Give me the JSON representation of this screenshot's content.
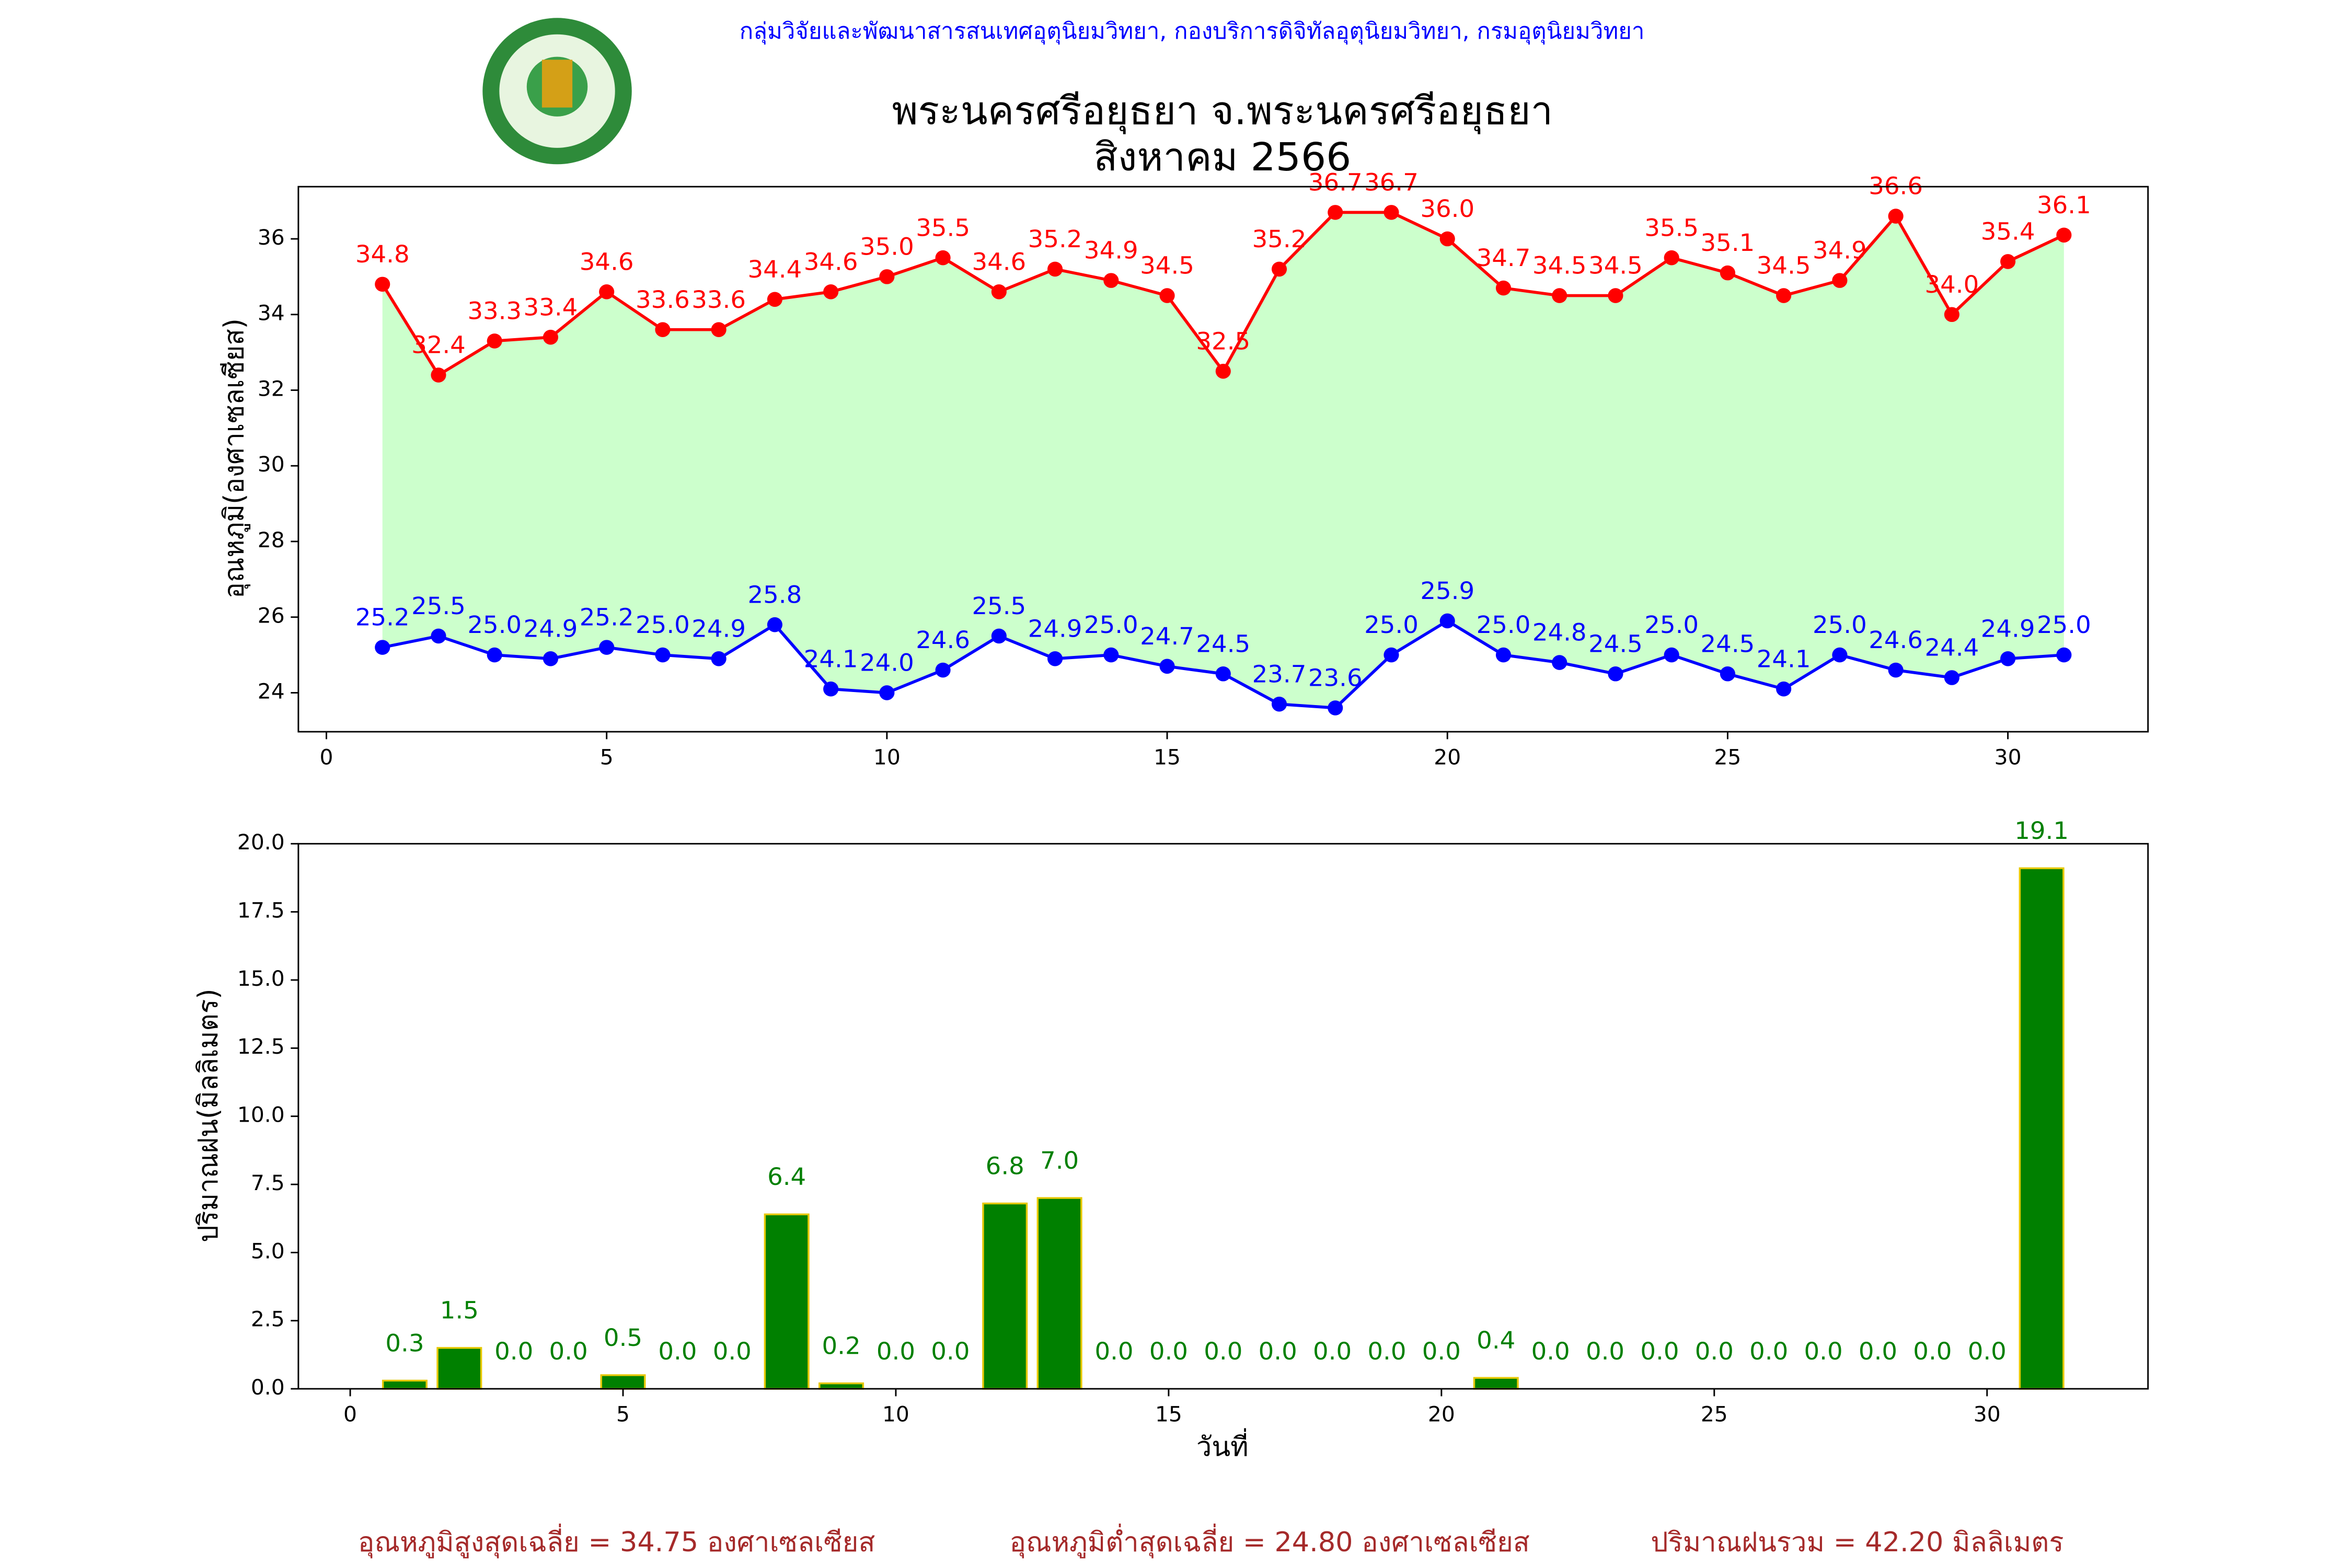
{
  "header": "กลุ่มวิจัยและพัฒนาสารสนเทศอุตุนิยมวิทยา, กองบริการดิจิทัลอุตุนิยมวิทยา, กรมอุตุนิยมวิทยา",
  "footer": [
    "อุณหภูมิสูงสุดเฉลี่ย = 34.75 องศาเซลเซียส",
    "อุณหภูมิต่ำสุดเฉลี่ย = 24.80 องศาเซลเซียส",
    "ปริมาณฝนรวม = 42.20 มิลลิเมตร"
  ],
  "chart_data": [
    {
      "type": "line",
      "title": "พระนครศรีอยุธยา จ.พระนครศรีอยุธยา",
      "subtitle": "สิงหาคม 2566",
      "y_label": "อุณหภูมิ(องศาเซลเซียส)",
      "fill_between": "#ccffcc",
      "x": [
        1,
        2,
        3,
        4,
        5,
        6,
        7,
        8,
        9,
        10,
        11,
        12,
        13,
        14,
        15,
        16,
        17,
        18,
        19,
        20,
        21,
        22,
        23,
        24,
        25,
        26,
        27,
        28,
        29,
        30,
        31
      ],
      "series": [
        {
          "color": "#ff0000",
          "values": [
            34.8,
            32.4,
            33.3,
            33.4,
            34.6,
            33.6,
            33.6,
            34.4,
            34.6,
            35.0,
            35.5,
            34.6,
            35.2,
            34.9,
            34.5,
            32.5,
            35.2,
            36.7,
            36.7,
            36.0,
            34.7,
            34.5,
            34.5,
            35.5,
            35.1,
            34.5,
            34.9,
            36.6,
            34.0,
            35.4,
            36.1
          ],
          "value_labels": [
            "34.8",
            "32.4",
            "33.3",
            "33.4",
            "34.6",
            "33.6",
            "33.6",
            "34.4",
            "34.6",
            "35.0",
            "35.5",
            "34.6",
            "35.2",
            "34.9",
            "34.5",
            "32.5",
            "35.2",
            "36.7",
            "36.7",
            "36.0",
            "34.7",
            "34.5",
            "34.5",
            "35.5",
            "35.1",
            "34.5",
            "34.9",
            "36.6",
            "34.0",
            "35.4",
            "36.1"
          ]
        },
        {
          "color": "#0000ff",
          "values": [
            25.2,
            25.5,
            25.0,
            24.9,
            25.2,
            25.0,
            24.9,
            25.8,
            24.1,
            24.0,
            24.6,
            25.5,
            24.9,
            25.0,
            24.7,
            24.5,
            23.7,
            23.6,
            25.0,
            25.9,
            25.0,
            24.8,
            24.5,
            25.0,
            24.5,
            24.1,
            25.0,
            24.6,
            24.4,
            24.9,
            25.0
          ],
          "value_labels": [
            "25.2",
            "25.5",
            "25.0",
            "24.9",
            "25.2",
            "25.0",
            "24.9",
            "25.8",
            "24.1",
            "24.0",
            "24.6",
            "25.5",
            "24.9",
            "25.0",
            "24.7",
            "24.5",
            "23.7",
            "23.6",
            "25.0",
            "25.9",
            "25.0",
            "24.8",
            "24.5",
            "25.0",
            "24.5",
            "24.1",
            "25.0",
            "24.6",
            "24.4",
            "24.9",
            "25.0"
          ]
        }
      ],
      "xlim": [
        -0.5,
        32.5
      ],
      "xticks": [
        0,
        5,
        10,
        15,
        20,
        25,
        30
      ],
      "ylim": [
        22.97,
        37.38
      ],
      "yticks": [
        24,
        26,
        28,
        30,
        32,
        34,
        36
      ]
    },
    {
      "type": "bar",
      "x_label": "วันที่",
      "y_label": "ปริมาณฝน(มิลลิเมตร)",
      "color": "#008000",
      "edgecolor": "#e6c800",
      "x": [
        1,
        2,
        3,
        4,
        5,
        6,
        7,
        8,
        9,
        10,
        11,
        12,
        13,
        14,
        15,
        16,
        17,
        18,
        19,
        20,
        21,
        22,
        23,
        24,
        25,
        26,
        27,
        28,
        29,
        30,
        31
      ],
      "values": [
        0.3,
        1.5,
        0,
        0,
        0.5,
        0,
        0,
        6.4,
        0.2,
        0,
        0,
        6.8,
        7.0,
        0,
        0,
        0,
        0,
        0,
        0,
        0,
        0.4,
        0,
        0,
        0,
        0,
        0,
        0,
        0,
        0,
        0,
        19.1
      ],
      "value_labels": [
        "0.3",
        "1.5",
        "0.0",
        "0.0",
        "0.5",
        "0.0",
        "0.0",
        "6.4",
        "0.2",
        "0.0",
        "0.0",
        "6.8",
        "7.0",
        "0.0",
        "0.0",
        "0.0",
        "0.0",
        "0.0",
        "0.0",
        "0.0",
        "0.4",
        "0.0",
        "0.0",
        "0.0",
        "0.0",
        "0.0",
        "0.0",
        "0.0",
        "0.0",
        "0.0",
        "19.1"
      ],
      "xlim": [
        -0.95,
        32.95
      ],
      "xticks": [
        0,
        5,
        10,
        15,
        20,
        25,
        30
      ],
      "ylim": [
        0,
        20
      ],
      "yticks": [
        {
          "value": 0,
          "label": "0.0"
        },
        {
          "value": 2.5,
          "label": "2.5"
        },
        {
          "value": 5,
          "label": "5.0"
        },
        {
          "value": 7.5,
          "label": "7.5"
        },
        {
          "value": 10,
          "label": "10.0"
        },
        {
          "value": 12.5,
          "label": "12.5"
        },
        {
          "value": 15,
          "label": "15.0"
        },
        {
          "value": 17.5,
          "label": "17.5"
        },
        {
          "value": 20,
          "label": "20.0"
        }
      ]
    }
  ]
}
